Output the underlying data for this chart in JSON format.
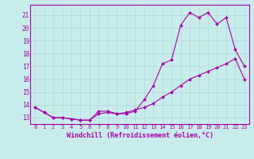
{
  "xlabel": "Windchill (Refroidissement éolien,°C)",
  "background_color": "#c8ecec",
  "grid_color": "#b0d8d8",
  "line_color": "#aa00aa",
  "xlim": [
    -0.5,
    23.5
  ],
  "ylim": [
    12.5,
    21.8
  ],
  "yticks": [
    13,
    14,
    15,
    16,
    17,
    18,
    19,
    20,
    21
  ],
  "xticks": [
    0,
    1,
    2,
    3,
    4,
    5,
    6,
    7,
    8,
    9,
    10,
    11,
    12,
    13,
    14,
    15,
    16,
    17,
    18,
    19,
    20,
    21,
    22,
    23
  ],
  "series1_x": [
    0,
    1,
    2,
    3,
    4,
    5,
    6,
    7,
    8,
    9,
    10,
    11,
    12,
    13,
    14,
    15,
    16,
    17,
    18,
    19,
    20,
    21,
    22,
    23
  ],
  "series1_y": [
    13.8,
    13.4,
    13.0,
    13.0,
    12.9,
    12.8,
    12.8,
    13.5,
    13.5,
    13.3,
    13.3,
    13.5,
    14.4,
    15.5,
    17.2,
    17.5,
    20.2,
    21.2,
    20.8,
    21.2,
    20.3,
    20.8,
    18.3,
    17.0
  ],
  "series2_x": [
    0,
    1,
    2,
    3,
    4,
    5,
    6,
    7,
    8,
    9,
    10,
    11,
    12,
    13,
    14,
    15,
    16,
    17,
    18,
    19,
    20,
    21,
    22,
    23
  ],
  "series2_y": [
    13.8,
    13.4,
    13.0,
    13.0,
    12.9,
    12.8,
    12.8,
    13.3,
    13.4,
    13.3,
    13.4,
    13.6,
    13.8,
    14.1,
    14.6,
    15.0,
    15.5,
    16.0,
    16.3,
    16.6,
    16.9,
    17.2,
    17.6,
    16.0
  ]
}
